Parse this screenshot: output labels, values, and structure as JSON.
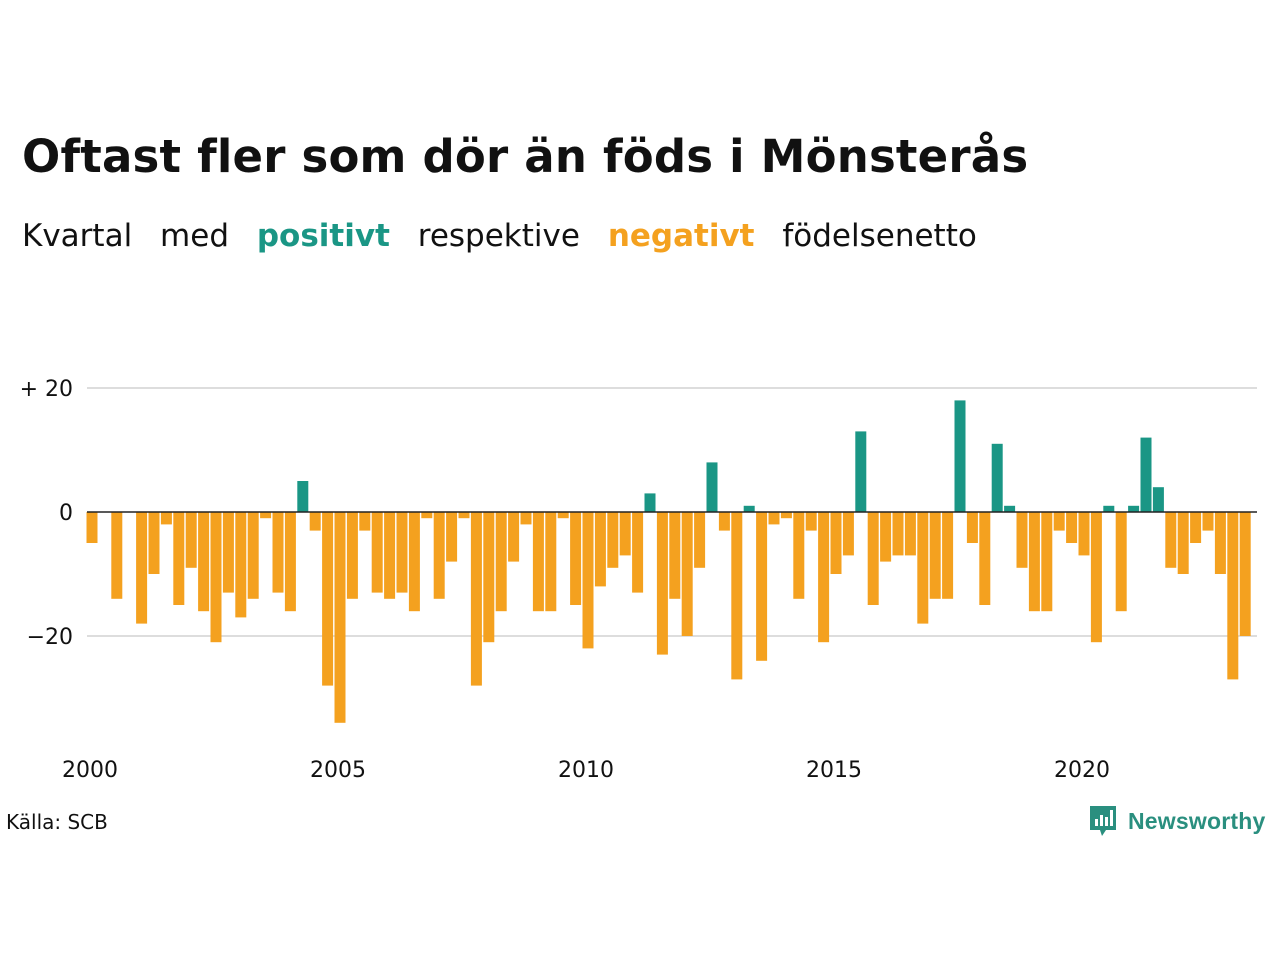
{
  "title": "Oftast fler som dör än föds i Mönsterås",
  "subtitle": {
    "w1": "Kvartal",
    "w2": "med",
    "positive": "positivt",
    "w3": "respektive",
    "negative": "negativt",
    "w4": "födelsenetto"
  },
  "source": "Källa: SCB",
  "brand": "Newsworthy",
  "colors": {
    "positive": "#1a9685",
    "negative": "#f4a11f",
    "grid": "#dddddd",
    "zero": "#222222"
  },
  "chart_data": {
    "type": "bar",
    "x_start": 2000,
    "frequency": "quarter",
    "x_ticks": [
      "2000",
      "2005",
      "2010",
      "2015",
      "2020"
    ],
    "y_ticks": [
      {
        "value": 20,
        "label": "+ 20"
      },
      {
        "value": 0,
        "label": "0"
      },
      {
        "value": -20,
        "label": "−20"
      }
    ],
    "ylim": [
      -35,
      22
    ],
    "grid": true,
    "values": [
      -5,
      0,
      -14,
      0,
      -18,
      -10,
      -2,
      -15,
      -9,
      -16,
      -21,
      -13,
      -17,
      -14,
      -1,
      -13,
      -16,
      5,
      -3,
      -28,
      -34,
      -14,
      -3,
      -13,
      -14,
      -13,
      -16,
      -1,
      -14,
      -8,
      -1,
      -28,
      -21,
      -16,
      -8,
      -2,
      -16,
      -16,
      -1,
      -15,
      -22,
      -12,
      -9,
      -7,
      -13,
      3,
      -23,
      -14,
      -20,
      -9,
      8,
      -3,
      -27,
      1,
      -24,
      -2,
      -1,
      -14,
      -3,
      -21,
      -10,
      -7,
      13,
      -15,
      -8,
      -7,
      -7,
      -18,
      -14,
      -14,
      18,
      -5,
      -15,
      11,
      1,
      -9,
      -16,
      -16,
      -3,
      -5,
      -7,
      -21,
      1,
      -16,
      1,
      12,
      4,
      -9,
      -10,
      -5,
      -3,
      -10,
      -27,
      -20
    ]
  }
}
